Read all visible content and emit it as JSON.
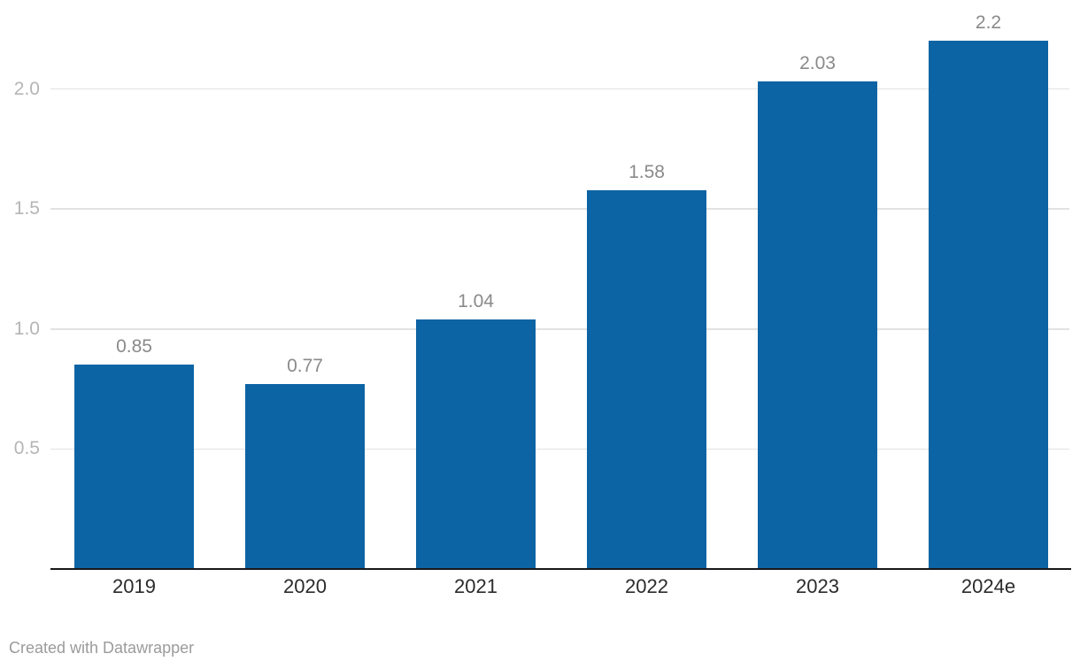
{
  "colors": {
    "bar": "#0c64a4",
    "grid": "#e2e2e2",
    "axis_line": "#18181b",
    "value_label": "#8a8a8a",
    "ytick_label": "#b5b5b5",
    "xtick_label": "#2b2b2b",
    "footer_text": "#9b9b9b",
    "background": "#ffffff"
  },
  "footer": {
    "attribution": "Created with Datawrapper"
  },
  "chart_data": {
    "type": "bar",
    "title": "",
    "xlabel": "",
    "ylabel": "",
    "categories": [
      "2019",
      "2020",
      "2021",
      "2022",
      "2023",
      "2024e"
    ],
    "values": [
      0.85,
      0.77,
      1.04,
      1.58,
      2.03,
      2.2
    ],
    "value_labels": [
      "0.85",
      "0.77",
      "1.04",
      "1.58",
      "2.03",
      "2.2"
    ],
    "yticks": [
      0.5,
      1.0,
      1.5,
      2.0
    ],
    "ytick_labels": [
      "0.5",
      "1.0",
      "1.5",
      "2.0"
    ],
    "ylim": [
      0,
      2.37
    ],
    "grid": true,
    "legend": false
  }
}
